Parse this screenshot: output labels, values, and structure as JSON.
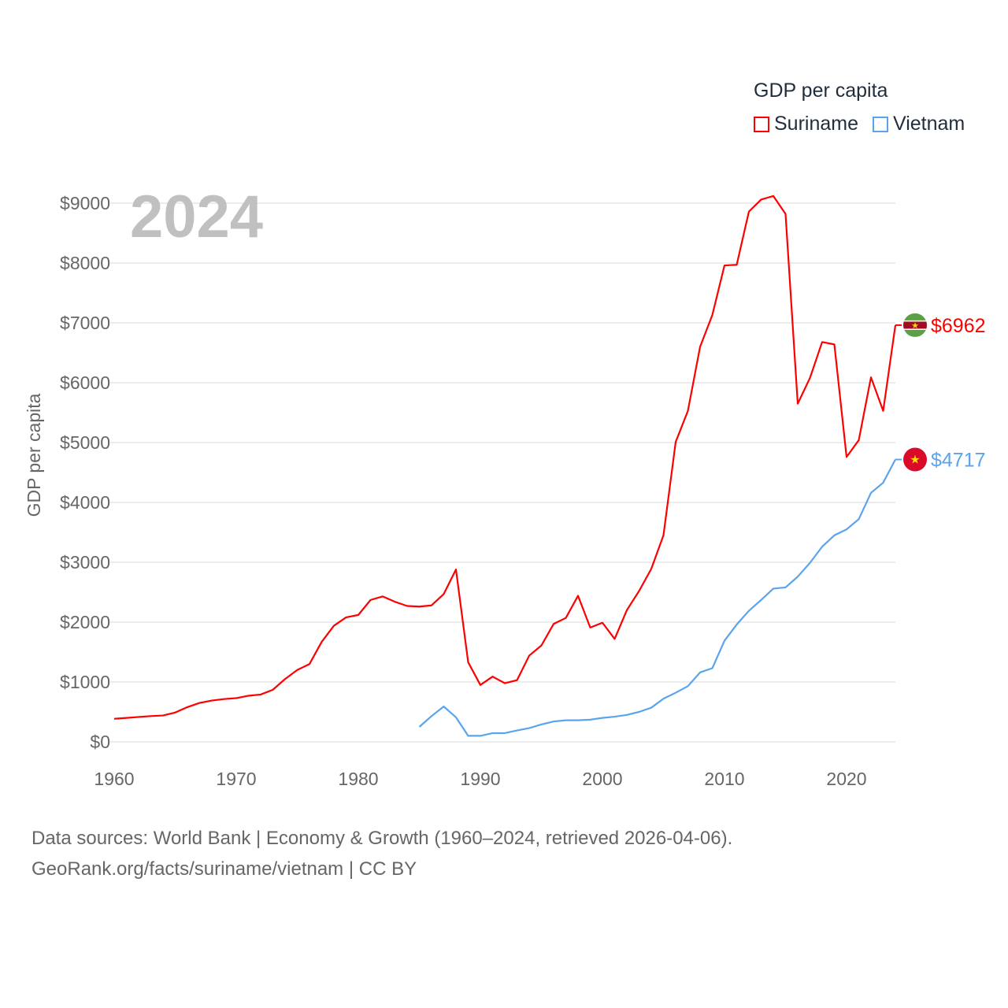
{
  "chart_data": {
    "type": "line",
    "title": "2024",
    "ylabel": "GDP per capita",
    "xlabel": "",
    "xlim": [
      1960,
      2024
    ],
    "ylim": [
      0,
      9000
    ],
    "x_ticks": [
      "1960",
      "1970",
      "1980",
      "1990",
      "2000",
      "2010",
      "2020"
    ],
    "y_ticks": [
      "$0",
      "$1000",
      "$2000",
      "$3000",
      "$4000",
      "$5000",
      "$6000",
      "$7000",
      "$8000",
      "$9000"
    ],
    "grid": true,
    "legend": {
      "title": "GDP per capita",
      "placement": "top-right"
    },
    "series": [
      {
        "name": "Suriname",
        "color": "#ff0000",
        "end_label": "$6962",
        "flag": "suriname-flag",
        "start_year": 1960,
        "values": [
          385,
          400,
          415,
          430,
          440,
          490,
          580,
          650,
          690,
          715,
          730,
          770,
          790,
          870,
          1050,
          1200,
          1300,
          1670,
          1940,
          2080,
          2120,
          2370,
          2430,
          2340,
          2270,
          2260,
          2280,
          2470,
          2880,
          1330,
          950,
          1090,
          980,
          1030,
          1440,
          1610,
          1970,
          2070,
          2440,
          1910,
          1990,
          1720,
          2200,
          2520,
          2890,
          3450,
          5010,
          5530,
          6600,
          7130,
          7960,
          7970,
          8860,
          9060,
          9120,
          8820,
          5650,
          6080,
          6680,
          6640,
          4760,
          5040,
          6090,
          5530,
          6962
        ]
      },
      {
        "name": "Vietnam",
        "color": "#5ba4ec",
        "end_label": "$4717",
        "flag": "vietnam-flag",
        "start_year": 1985,
        "values": [
          250,
          430,
          590,
          410,
          100,
          100,
          145,
          145,
          190,
          230,
          290,
          340,
          360,
          360,
          370,
          400,
          420,
          450,
          500,
          570,
          720,
          820,
          930,
          1160,
          1230,
          1690,
          1960,
          2190,
          2370,
          2560,
          2580,
          2760,
          2990,
          3260,
          3450,
          3550,
          3720,
          4160,
          4330,
          4717
        ]
      }
    ]
  },
  "footer": {
    "line1": "Data sources: World Bank | Economy & Growth (1960–2024, retrieved 2026-04-06).",
    "line2": "GeoRank.org/facts/suriname/vietnam | CC BY"
  }
}
